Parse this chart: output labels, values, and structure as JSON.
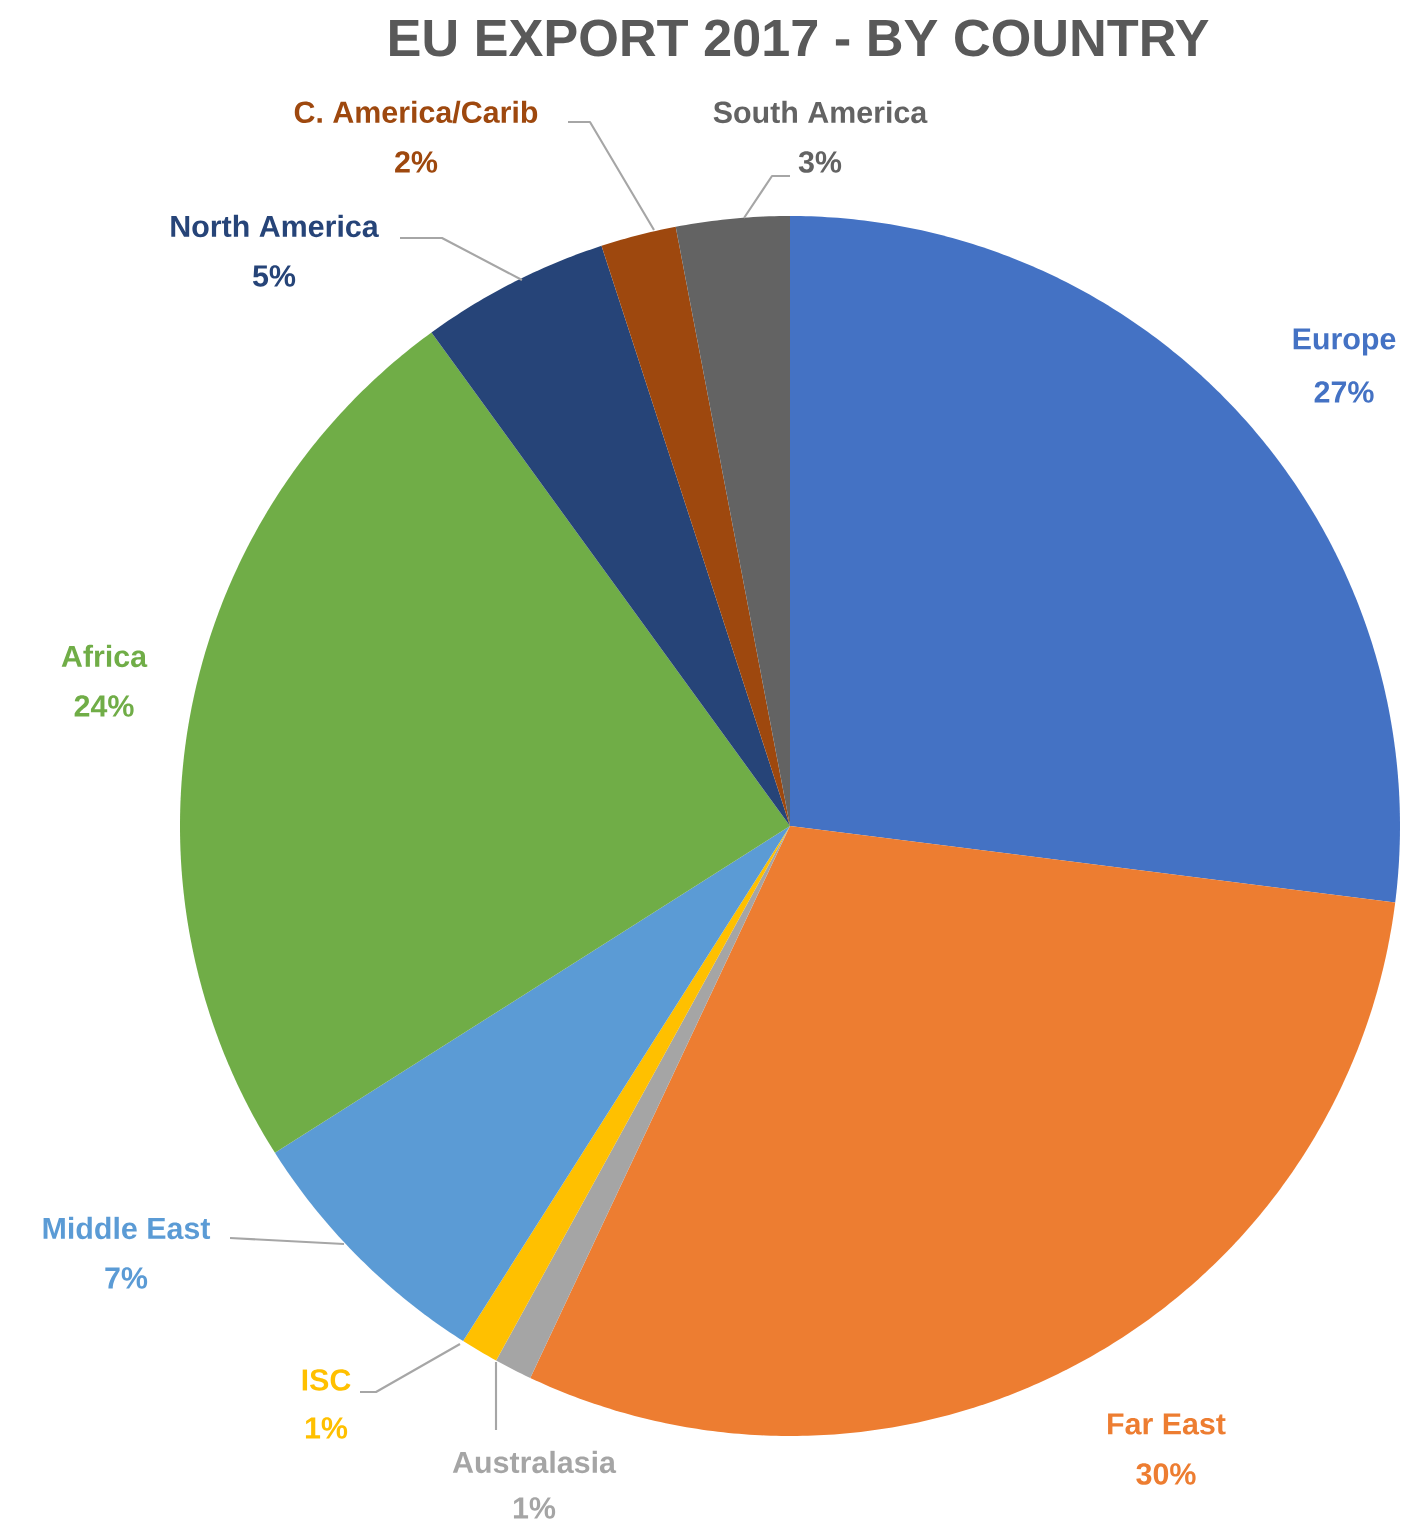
{
  "chart_data": {
    "type": "pie",
    "title": "EU EXPORT 2017 - BY COUNTRY",
    "categories": [
      "Europe",
      "Far East",
      "Australasia",
      "ISC",
      "Middle East",
      "Africa",
      "North America",
      "C. America/Carib",
      "South America"
    ],
    "values": [
      27,
      30,
      1,
      1,
      7,
      24,
      5,
      2,
      3
    ],
    "value_labels": [
      "27%",
      "30%",
      "1%",
      "1%",
      "7%",
      "24%",
      "5%",
      "2%",
      "3%"
    ],
    "colors": [
      "#4472c4",
      "#ed7d31",
      "#a5a5a5",
      "#ffc000",
      "#5b9bd5",
      "#70ad47",
      "#264478",
      "#9e480e",
      "#636363"
    ]
  }
}
